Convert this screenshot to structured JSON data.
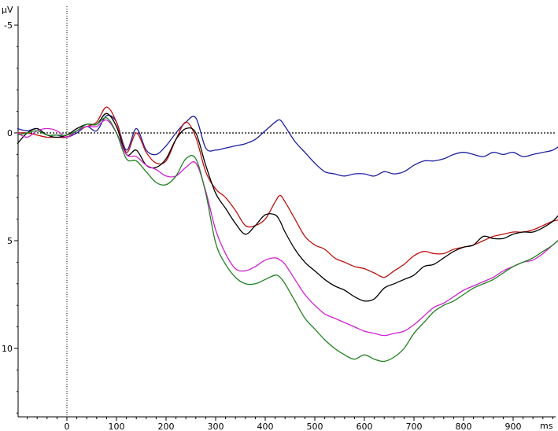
{
  "chart_data": {
    "type": "line",
    "ylabel": "µV",
    "xlabel": "ms",
    "y_inverted": true,
    "xlim": [
      -100,
      1000
    ],
    "ylim": [
      -5.2,
      13.3
    ],
    "x_ticks_labeled": [
      {
        "value": 0,
        "label": "0"
      },
      {
        "value": 100,
        "label": "100"
      },
      {
        "value": 200,
        "label": "200"
      },
      {
        "value": 300,
        "label": "300"
      },
      {
        "value": 400,
        "label": "400"
      },
      {
        "value": 500,
        "label": "500"
      },
      {
        "value": 600,
        "label": "600"
      },
      {
        "value": 700,
        "label": "700"
      },
      {
        "value": 800,
        "label": "800"
      },
      {
        "value": 900,
        "label": "900"
      }
    ],
    "x_minor_tick_step": 20,
    "y_ticks": [
      {
        "value": -5,
        "label": "-5"
      },
      {
        "value": 0,
        "label": "0"
      },
      {
        "value": 5,
        "label": "5"
      },
      {
        "value": 10,
        "label": "10"
      }
    ],
    "y_minor_tick_step": 1,
    "zero_line": {
      "style": "dotted",
      "color": "#000000"
    },
    "onset_line": {
      "x": 0,
      "style": "dotted",
      "color": "#000000"
    },
    "grid": false,
    "legend": "none",
    "series": [
      {
        "color": "#1f1fa0",
        "x": [
          -100,
          -80,
          -60,
          -40,
          -20,
          0,
          20,
          40,
          60,
          80,
          100,
          120,
          140,
          160,
          180,
          200,
          220,
          240,
          260,
          280,
          300,
          320,
          340,
          360,
          380,
          400,
          420,
          430,
          440,
          460,
          480,
          500,
          520,
          540,
          560,
          580,
          600,
          620,
          640,
          660,
          680,
          700,
          720,
          740,
          760,
          780,
          800,
          820,
          840,
          860,
          880,
          900,
          920,
          940,
          960,
          980,
          1000
        ],
        "y": [
          -0.2,
          -0.1,
          -0.2,
          0.1,
          0.1,
          0.2,
          0.0,
          -0.3,
          -0.1,
          -0.8,
          -0.5,
          0.8,
          -0.2,
          0.8,
          1.0,
          0.6,
          0.0,
          -0.5,
          -0.7,
          0.7,
          0.8,
          0.7,
          0.6,
          0.5,
          0.3,
          -0.1,
          -0.5,
          -0.6,
          -0.3,
          0.4,
          0.9,
          1.4,
          1.8,
          1.9,
          2.0,
          1.9,
          1.9,
          2.0,
          1.8,
          1.9,
          1.8,
          1.5,
          1.3,
          1.3,
          1.2,
          1.0,
          0.9,
          1.0,
          1.1,
          0.9,
          1.0,
          0.9,
          1.1,
          1.0,
          0.9,
          0.8,
          0.5
        ]
      },
      {
        "color": "#c01010",
        "x": [
          -100,
          -80,
          -60,
          -40,
          -20,
          0,
          20,
          40,
          60,
          80,
          100,
          120,
          140,
          160,
          180,
          200,
          220,
          240,
          260,
          280,
          300,
          320,
          340,
          360,
          380,
          400,
          420,
          430,
          440,
          460,
          480,
          500,
          520,
          540,
          560,
          580,
          600,
          620,
          640,
          660,
          680,
          700,
          720,
          740,
          760,
          780,
          800,
          820,
          840,
          860,
          880,
          900,
          920,
          940,
          960,
          980,
          1000
        ],
        "y": [
          0.0,
          0.0,
          0.1,
          0.2,
          0.2,
          0.2,
          -0.1,
          -0.3,
          -0.5,
          -1.2,
          -0.5,
          0.9,
          0.0,
          0.9,
          1.4,
          1.3,
          0.3,
          -0.5,
          0.2,
          1.8,
          2.6,
          3.0,
          3.6,
          4.3,
          4.3,
          4.0,
          3.2,
          2.9,
          3.2,
          4.0,
          4.8,
          5.2,
          5.4,
          5.8,
          6.0,
          6.2,
          6.3,
          6.5,
          6.7,
          6.4,
          6.1,
          5.7,
          5.5,
          5.6,
          5.6,
          5.4,
          5.3,
          5.2,
          5.0,
          4.8,
          4.7,
          4.6,
          4.6,
          4.5,
          4.3,
          4.1,
          4.0
        ]
      },
      {
        "color": "#000000",
        "x": [
          -100,
          -80,
          -60,
          -40,
          -20,
          0,
          20,
          40,
          60,
          80,
          100,
          120,
          140,
          160,
          180,
          200,
          220,
          240,
          260,
          280,
          300,
          320,
          340,
          360,
          380,
          400,
          420,
          430,
          440,
          460,
          480,
          500,
          520,
          540,
          560,
          580,
          600,
          620,
          640,
          660,
          680,
          700,
          720,
          740,
          760,
          780,
          800,
          820,
          840,
          860,
          880,
          900,
          920,
          940,
          960,
          980,
          1000
        ],
        "y": [
          0.5,
          0.0,
          -0.2,
          0.1,
          0.2,
          0.1,
          -0.2,
          -0.4,
          -0.4,
          -0.9,
          -0.3,
          1.0,
          0.8,
          1.5,
          1.6,
          1.2,
          0.3,
          -0.2,
          0.0,
          1.5,
          2.8,
          3.5,
          4.2,
          4.7,
          4.3,
          3.8,
          3.8,
          4.1,
          4.6,
          5.4,
          6.0,
          6.4,
          6.8,
          7.1,
          7.3,
          7.6,
          7.8,
          7.7,
          7.2,
          7.0,
          6.8,
          6.6,
          6.2,
          6.1,
          5.8,
          5.5,
          5.3,
          5.2,
          4.8,
          4.9,
          4.9,
          4.7,
          4.6,
          4.6,
          4.4,
          4.1,
          3.6
        ]
      },
      {
        "color": "#d020d0",
        "x": [
          -100,
          -80,
          -60,
          -40,
          -20,
          0,
          20,
          40,
          60,
          80,
          100,
          120,
          140,
          160,
          180,
          200,
          220,
          240,
          260,
          280,
          300,
          320,
          340,
          360,
          380,
          400,
          420,
          430,
          440,
          460,
          480,
          500,
          520,
          540,
          560,
          580,
          600,
          620,
          640,
          660,
          680,
          700,
          720,
          740,
          760,
          780,
          800,
          820,
          840,
          860,
          880,
          900,
          920,
          940,
          960,
          980,
          1000
        ],
        "y": [
          0.0,
          0.2,
          -0.1,
          -0.2,
          -0.1,
          0.2,
          -0.1,
          -0.3,
          -0.3,
          -0.6,
          0.0,
          1.0,
          1.1,
          1.5,
          1.7,
          2.0,
          2.0,
          1.6,
          1.4,
          2.7,
          4.5,
          5.6,
          6.3,
          6.4,
          6.2,
          5.9,
          5.8,
          5.9,
          6.1,
          6.8,
          7.5,
          8.0,
          8.4,
          8.6,
          8.8,
          9.0,
          9.2,
          9.3,
          9.4,
          9.3,
          9.2,
          8.9,
          8.5,
          8.1,
          7.9,
          7.6,
          7.3,
          7.1,
          6.9,
          6.7,
          6.4,
          6.2,
          6.0,
          5.9,
          5.6,
          5.2,
          4.8
        ]
      },
      {
        "color": "#208020",
        "x": [
          -100,
          -80,
          -60,
          -40,
          -20,
          0,
          20,
          40,
          60,
          80,
          100,
          120,
          140,
          160,
          180,
          200,
          220,
          240,
          260,
          280,
          300,
          320,
          340,
          360,
          380,
          400,
          420,
          430,
          440,
          460,
          480,
          500,
          520,
          540,
          560,
          580,
          600,
          620,
          640,
          660,
          680,
          700,
          720,
          740,
          760,
          780,
          800,
          820,
          840,
          860,
          880,
          900,
          920,
          940,
          960,
          980,
          1000
        ],
        "y": [
          0.1,
          0.0,
          -0.1,
          0.1,
          0.1,
          0.1,
          -0.1,
          -0.4,
          -0.4,
          -0.7,
          0.0,
          1.2,
          1.3,
          1.8,
          2.3,
          2.4,
          2.0,
          1.2,
          1.2,
          2.8,
          5.1,
          6.1,
          6.7,
          7.0,
          7.0,
          6.8,
          6.6,
          6.7,
          7.0,
          7.8,
          8.6,
          9.1,
          9.6,
          10.0,
          10.3,
          10.5,
          10.3,
          10.5,
          10.6,
          10.4,
          10.0,
          9.3,
          8.8,
          8.3,
          8.0,
          7.8,
          7.5,
          7.2,
          7.0,
          6.8,
          6.5,
          6.2,
          6.0,
          5.8,
          5.5,
          5.2,
          4.8
        ]
      }
    ]
  }
}
